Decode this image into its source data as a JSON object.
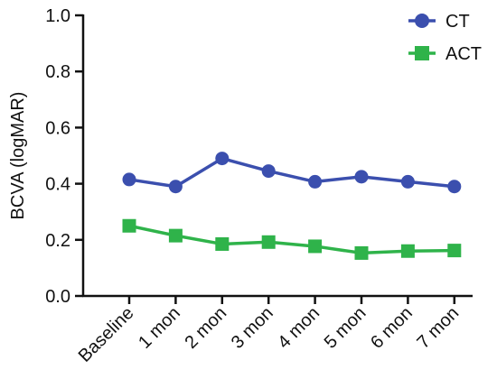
{
  "chart_data": {
    "type": "line",
    "title": "",
    "xlabel": "",
    "ylabel": "BCVA (logMAR)",
    "categories": [
      "Baseline",
      "1 mon",
      "2 mon",
      "3 mon",
      "4 mon",
      "5 mon",
      "6 mon",
      "7 mon"
    ],
    "ylim": [
      0,
      1.0
    ],
    "yticks": [
      "0.0",
      "0.2",
      "0.4",
      "0.6",
      "0.8",
      "1.0"
    ],
    "grid": false,
    "legend_position": "top-right",
    "series": [
      {
        "name": "CT",
        "marker": "circle",
        "color": "#3b4fae",
        "values": [
          0.415,
          0.39,
          0.49,
          0.445,
          0.407,
          0.425,
          0.407,
          0.39
        ]
      },
      {
        "name": "ACT",
        "marker": "square",
        "color": "#2fb34a",
        "values": [
          0.25,
          0.215,
          0.185,
          0.192,
          0.177,
          0.153,
          0.16,
          0.162
        ]
      }
    ]
  }
}
